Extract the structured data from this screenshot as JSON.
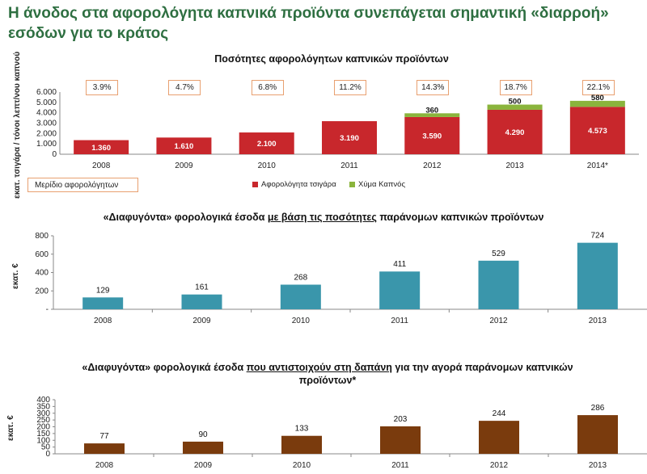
{
  "headline": "Η άνοδος στα αφορολόγητα καπνικά προϊόντα συνεπάγεται σημαντική «διαρροή» εσόδων για το κράτος",
  "colors": {
    "headline": "#2e6f41",
    "cigarettes": "#c8272c",
    "loose_tobacco": "#8ab43c",
    "chart2": "#3a96ab",
    "chart3": "#7a3b0d"
  },
  "chart_data": [
    {
      "type": "bar",
      "stacked": true,
      "title": "Ποσότητες αφορολόγητων καπνικών προϊόντων",
      "ylabel": "εκατ. τσιγάρα / τόνοι λεπτ/νου καπνού",
      "categories": [
        "2008",
        "2009",
        "2010",
        "2011",
        "2012",
        "2013",
        "2014*"
      ],
      "series": [
        {
          "name": "Αφορολόγητα τσιγάρα",
          "values": [
            1360,
            1610,
            2100,
            3190,
            3590,
            4290,
            4573
          ],
          "labels": [
            "1.360",
            "1.610",
            "2.100",
            "3.190",
            "3.590",
            "4.290",
            "4.573"
          ]
        },
        {
          "name": "Χύμα Καπνός",
          "values": [
            0,
            0,
            0,
            0,
            360,
            500,
            580
          ],
          "labels": [
            "",
            "",
            "",
            "",
            "360",
            "500",
            "580"
          ]
        }
      ],
      "share_label": "Μερίδιο αφορολόγητων",
      "share_values": [
        "3.9%",
        "4.7%",
        "6.8%",
        "11.2%",
        "14.3%",
        "18.7%",
        "22.1%"
      ],
      "ylim": [
        0,
        6000
      ],
      "yticks": [
        "0",
        "1.000",
        "2.000",
        "3.000",
        "4.000",
        "5.000",
        "6.000"
      ],
      "legend": "bottom"
    },
    {
      "type": "bar",
      "title_parts": [
        "«Διαφυγόντα» φορολογικά έσοδα ",
        "με βάση τις ποσότητες",
        " παράνομων καπνικών προϊόντων"
      ],
      "ylabel": "εκατ. €",
      "categories": [
        "2008",
        "2009",
        "2010",
        "2011",
        "2012",
        "2013"
      ],
      "values": [
        129,
        161,
        268,
        411,
        529,
        724
      ],
      "ylim": [
        0,
        800
      ],
      "yticks": [
        "-",
        "200",
        "400",
        "600",
        "800"
      ]
    },
    {
      "type": "bar",
      "title_parts": [
        "«Διαφυγόντα» φορολογικά έσοδα ",
        "που αντιστοιχούν στη δαπάνη",
        " για την αγορά παράνομων καπνικών προϊόντων*"
      ],
      "ylabel": "εκατ. €",
      "categories": [
        "2008",
        "2009",
        "2010",
        "2011",
        "2012",
        "2013"
      ],
      "values": [
        77,
        90,
        133,
        203,
        244,
        286
      ],
      "ylim": [
        0,
        400
      ],
      "yticks": [
        "0",
        "50",
        "100",
        "150",
        "200",
        "250",
        "300",
        "350",
        "400"
      ]
    }
  ]
}
